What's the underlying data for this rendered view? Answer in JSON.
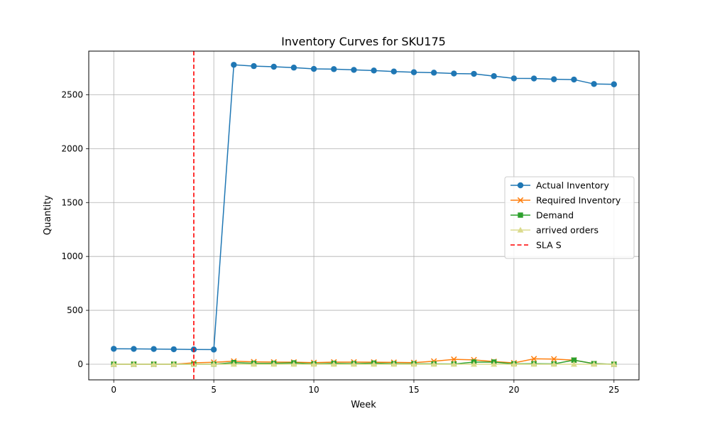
{
  "chart_data": {
    "type": "line",
    "title": "Inventory Curves for SKU175",
    "xlabel": "Week",
    "ylabel": "Quantity",
    "xlim": [
      -1.25,
      26.25
    ],
    "ylim": [
      -145,
      2905
    ],
    "xticks": [
      0,
      5,
      10,
      15,
      20,
      25
    ],
    "yticks": [
      0,
      500,
      1000,
      1500,
      2000,
      2500
    ],
    "grid": true,
    "legend_position": "center-right",
    "x": [
      0,
      1,
      2,
      3,
      4,
      5,
      6,
      7,
      8,
      9,
      10,
      11,
      12,
      13,
      14,
      15,
      16,
      17,
      18,
      19,
      20,
      21,
      22,
      23,
      24,
      25
    ],
    "series": [
      {
        "name": "Actual Inventory",
        "color": "#1f77b4",
        "marker": "circle",
        "linestyle": "solid",
        "values": [
          143,
          142,
          141,
          139,
          137,
          136,
          2778,
          2766,
          2760,
          2752,
          2740,
          2738,
          2731,
          2725,
          2716,
          2709,
          2705,
          2697,
          2694,
          2673,
          2652,
          2651,
          2644,
          2641,
          2600,
          2597
        ]
      },
      {
        "name": "Required Inventory",
        "color": "#ff7f0e",
        "marker": "x",
        "linestyle": "solid",
        "values": [
          0,
          0,
          0,
          0,
          13,
          18,
          28,
          22,
          20,
          19,
          15,
          20,
          20,
          19,
          17,
          15,
          28,
          45,
          40,
          25,
          12,
          50,
          48,
          38,
          5,
          0
        ]
      },
      {
        "name": "Demand",
        "color": "#2ca02c",
        "marker": "square",
        "linestyle": "solid",
        "values": [
          0,
          0,
          0,
          0,
          0,
          0,
          15,
          8,
          8,
          12,
          3,
          8,
          6,
          10,
          5,
          4,
          3,
          2,
          20,
          20,
          3,
          5,
          3,
          38,
          5,
          0
        ]
      },
      {
        "name": "arrived orders",
        "color": "#dbdb8d",
        "marker": "triangle",
        "linestyle": "solid",
        "values": [
          0,
          0,
          0,
          0,
          0,
          0,
          0,
          0,
          0,
          0,
          0,
          0,
          0,
          0,
          0,
          0,
          0,
          0,
          0,
          0,
          0,
          0,
          0,
          0,
          0,
          0
        ]
      }
    ],
    "vlines": [
      {
        "name": "SLA S",
        "x": 4,
        "color": "#ff0000",
        "linestyle": "dashed"
      }
    ]
  }
}
